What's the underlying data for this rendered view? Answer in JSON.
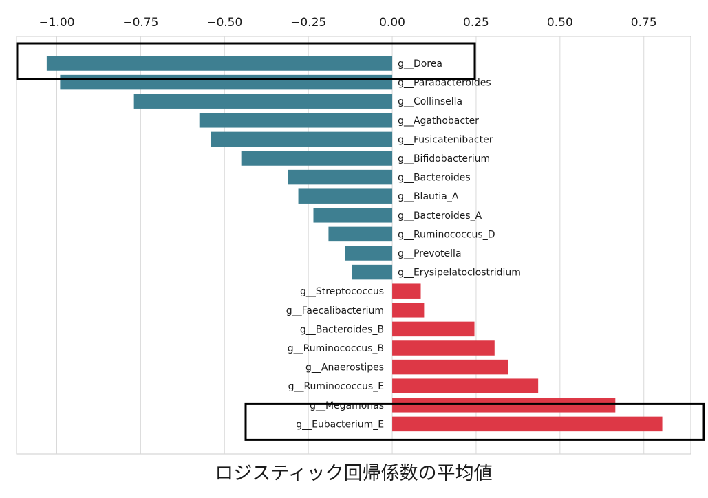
{
  "chart_data": {
    "type": "bar",
    "orientation": "horizontal",
    "title": "",
    "xlabel": "ロジスティック回帰係数の平均値",
    "ylabel": "",
    "xlim": [
      -1.12,
      0.89
    ],
    "xticks": [
      -1.0,
      -0.75,
      -0.5,
      -0.25,
      0.0,
      0.25,
      0.5,
      0.75
    ],
    "xtick_labels": [
      "−1.00",
      "−0.75",
      "−0.50",
      "−0.25",
      "0.00",
      "0.25",
      "0.50",
      "0.75"
    ],
    "grid": "vertical",
    "categories": [
      "g__Dorea",
      "g__Parabacteroides",
      "g__Collinsella",
      "g__Agathobacter",
      "g__Fusicatenibacter",
      "g__Bifidobacterium",
      "g__Bacteroides",
      "g__Blautia_A",
      "g__Bacteroides_A",
      "g__Ruminococcus_D",
      "g__Prevotella",
      "g__Erysipelatoclostridium",
      "g__Streptococcus",
      "g__Faecalibacterium",
      "g__Bacteroides_B",
      "g__Ruminococcus_B",
      "g__Anaerostipes",
      "g__Ruminococcus_E",
      "g__Megamonas",
      "g__Eubacterium_E"
    ],
    "values": [
      -1.03,
      -0.99,
      -0.77,
      -0.575,
      -0.54,
      -0.45,
      -0.31,
      -0.28,
      -0.235,
      -0.19,
      -0.14,
      -0.12,
      0.085,
      0.095,
      0.245,
      0.305,
      0.345,
      0.435,
      0.665,
      0.805
    ],
    "colors": {
      "negative": "#3e7f91",
      "positive": "#dd3846"
    },
    "highlighted_categories": [
      "g__Dorea",
      "g__Eubacterium_E"
    ]
  }
}
